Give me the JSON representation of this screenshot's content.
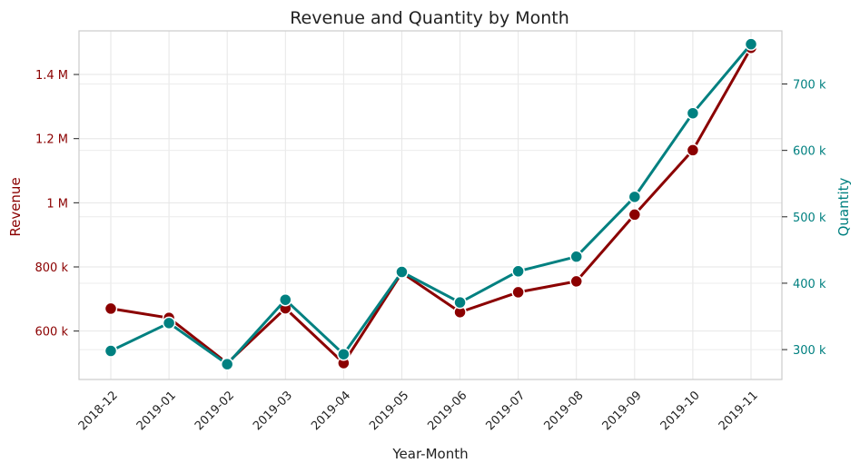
{
  "chart_data": {
    "type": "line",
    "title": "Revenue and Quantity by Month",
    "xlabel": "Year-Month",
    "categories": [
      "2018-12",
      "2019-01",
      "2019-02",
      "2019-03",
      "2019-04",
      "2019-05",
      "2019-06",
      "2019-07",
      "2019-08",
      "2019-09",
      "2019-10",
      "2019-11"
    ],
    "left_axis": {
      "label": "Revenue",
      "color": "#8b0000",
      "ylim": [
        449000,
        1536000
      ],
      "ticks": [
        600000,
        800000,
        1000000,
        1200000,
        1400000
      ],
      "tick_labels": [
        "600 k",
        "800 k",
        "1 M",
        "1.2 M",
        "1.4 M"
      ]
    },
    "right_axis": {
      "label": "Quantity",
      "color": "#008080",
      "ylim": [
        255000,
        780000
      ],
      "ticks": [
        300000,
        400000,
        500000,
        600000,
        700000
      ],
      "tick_labels": [
        "300 k",
        "400 k",
        "500 k",
        "600 k",
        "700 k"
      ]
    },
    "series": [
      {
        "axis": "left",
        "color": "#8b0000",
        "values": [
          670000,
          641000,
          500000,
          671000,
          500000,
          782000,
          659000,
          721000,
          755000,
          963000,
          1164000,
          1483000
        ]
      },
      {
        "axis": "right",
        "color": "#008080",
        "values": [
          298000,
          340000,
          278000,
          375000,
          293000,
          417000,
          371000,
          418000,
          440000,
          530000,
          656000,
          760000
        ]
      }
    ],
    "grid": true
  }
}
